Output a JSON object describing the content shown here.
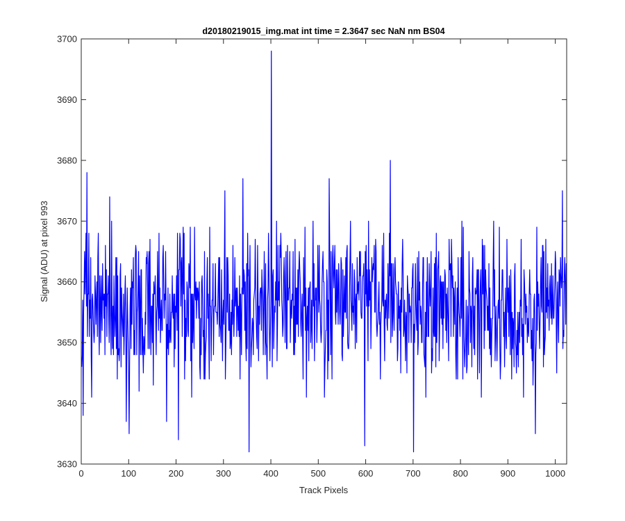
{
  "chart_data": {
    "type": "line",
    "title": "d20180219015_img.mat int time = 2.3647 sec  NaN nm BS04",
    "xlabel": "Track Pixels",
    "ylabel": "Signal (ADU) at pixel 993",
    "xlim": [
      0,
      1024
    ],
    "ylim": [
      3630,
      3700
    ],
    "xticks": [
      0,
      100,
      200,
      300,
      400,
      500,
      600,
      700,
      800,
      900,
      1000
    ],
    "yticks": [
      3630,
      3640,
      3650,
      3660,
      3670,
      3680,
      3690,
      3700
    ],
    "grid": false,
    "legend": "none",
    "color": "#0000ff",
    "series": [
      {
        "x_start": 1,
        "x_step": 1,
        "mean": 3656,
        "noise_std": 5.8,
        "n_points": 1024,
        "min_value": 3632,
        "max_value": 3698,
        "spikes": [
          {
            "x": 4,
            "y": 3638
          },
          {
            "x": 12,
            "y": 3678
          },
          {
            "x": 22,
            "y": 3641
          },
          {
            "x": 60,
            "y": 3674
          },
          {
            "x": 95,
            "y": 3637
          },
          {
            "x": 101,
            "y": 3635
          },
          {
            "x": 180,
            "y": 3637
          },
          {
            "x": 205,
            "y": 3634
          },
          {
            "x": 303,
            "y": 3675
          },
          {
            "x": 341,
            "y": 3677
          },
          {
            "x": 354,
            "y": 3632
          },
          {
            "x": 401,
            "y": 3698
          },
          {
            "x": 523,
            "y": 3677
          },
          {
            "x": 598,
            "y": 3633
          },
          {
            "x": 652,
            "y": 3680
          },
          {
            "x": 701,
            "y": 3632
          },
          {
            "x": 958,
            "y": 3635
          },
          {
            "x": 1015,
            "y": 3675
          }
        ]
      }
    ]
  }
}
